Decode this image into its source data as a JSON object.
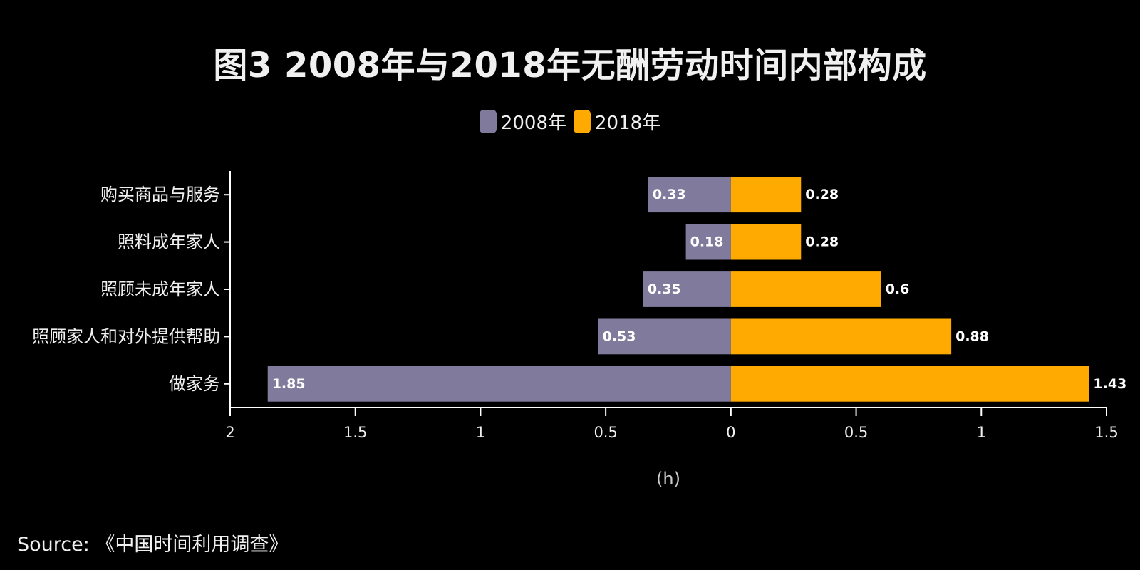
{
  "title": "图3 2008年与2018年无酬劳动时间内部构成",
  "source": "Source: 《中国时间利用调查》",
  "colors": {
    "background": "#000000",
    "series_2008": "#807b9c",
    "series_2018": "#ffaa00",
    "axis": "#ffffff",
    "text": "#f0f0f0"
  },
  "chart_data": {
    "type": "bar",
    "orientation": "horizontal-diverging",
    "categories": [
      "购买商品与服务",
      "照料成年家人",
      "照顾未成年家人",
      "照顾家人和对外提供帮助",
      "做家务"
    ],
    "series": [
      {
        "name": "2008年",
        "values": [
          0.33,
          0.18,
          0.35,
          0.53,
          1.85
        ],
        "direction": "left"
      },
      {
        "name": "2018年",
        "values": [
          0.28,
          0.28,
          0.6,
          0.88,
          1.43
        ],
        "direction": "right"
      }
    ],
    "xlabel": "(h)",
    "ylabel": "",
    "xlim": [
      -2,
      1.5
    ],
    "x_ticks": [
      {
        "value": -2,
        "label": "2"
      },
      {
        "value": -1.5,
        "label": "1.5"
      },
      {
        "value": -1,
        "label": "1"
      },
      {
        "value": -0.5,
        "label": "0.5"
      },
      {
        "value": 0,
        "label": "0"
      },
      {
        "value": 0.5,
        "label": "0.5"
      },
      {
        "value": 1,
        "label": "1"
      },
      {
        "value": 1.5,
        "label": "1.5"
      }
    ],
    "data_labels": true,
    "grid": false,
    "legend_position": "top-center"
  }
}
